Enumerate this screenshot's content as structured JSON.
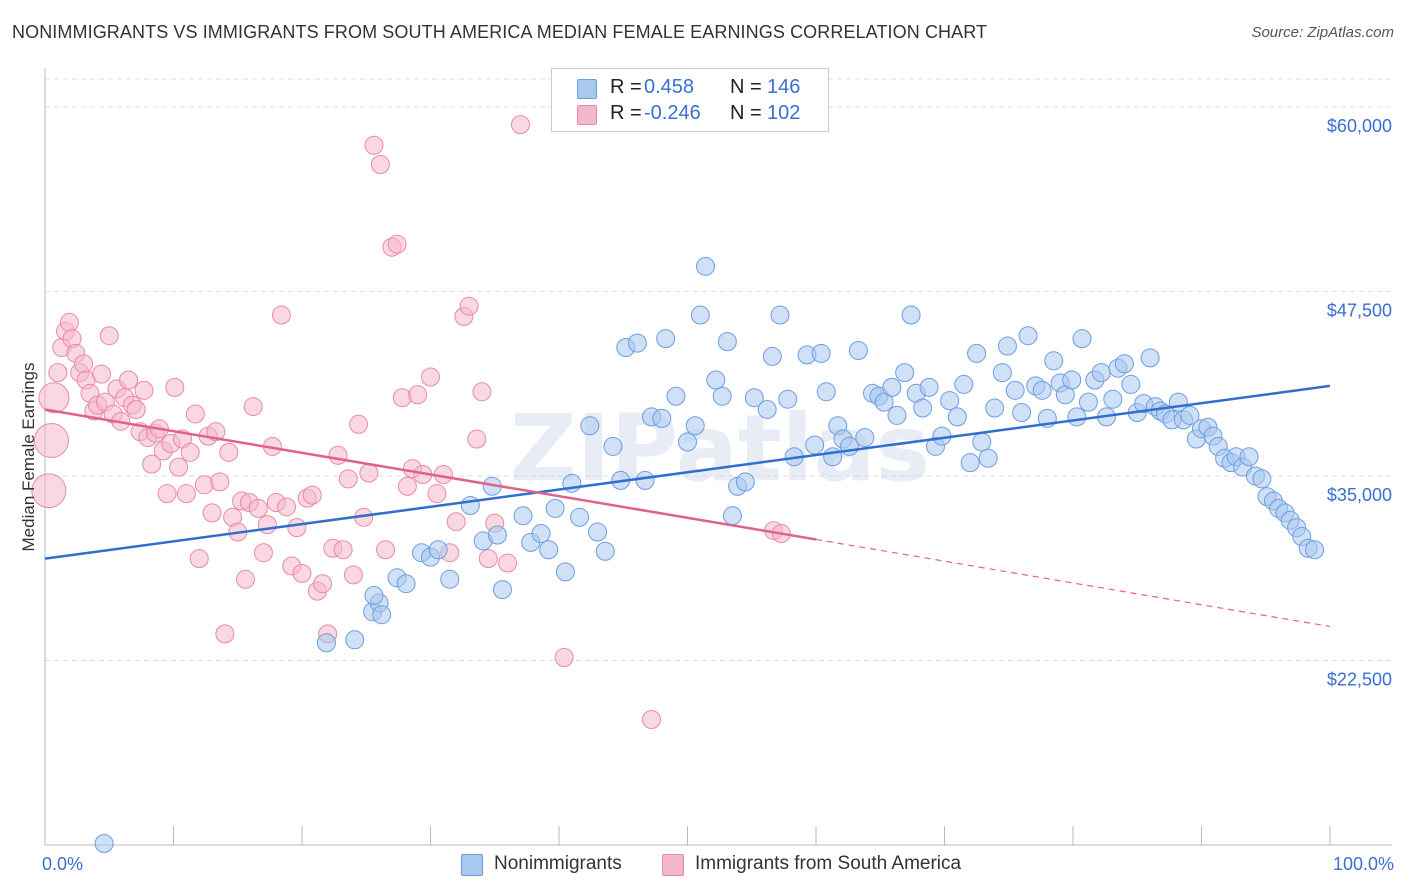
{
  "title": "NONIMMIGRANTS VS IMMIGRANTS FROM SOUTH AMERICA MEDIAN FEMALE EARNINGS CORRELATION CHART",
  "source": "Source: ZipAtlas.com",
  "watermark": "ZIPatlas",
  "legend": {
    "rows": [
      {
        "r_label": "R =",
        "r_value": "0.458",
        "n_label": "N =",
        "n_value": "146"
      },
      {
        "r_label": "R =",
        "r_value": "-0.246",
        "n_label": "N =",
        "n_value": "102"
      }
    ]
  },
  "bottom_legend": [
    "Nonimmigrants",
    "Immigrants from South America"
  ],
  "colors": {
    "blue_fill": "#a9c8f0",
    "blue_stroke": "#6b9ee0",
    "blue_line": "#2f6fcf",
    "pink_fill": "#f5b8cb",
    "pink_stroke": "#e88aa6",
    "pink_line": "#e0628a",
    "tick_label": "#3a6fd1",
    "grid": "#dddddd"
  },
  "chart_data": {
    "type": "scatter",
    "ylabel": "Median Female Earnings",
    "xlabel": "",
    "xlim": [
      0,
      100
    ],
    "ylim": [
      10000,
      62500
    ],
    "x_tick_labels": [
      {
        "value": 0,
        "label": "0.0%"
      },
      {
        "value": 100,
        "label": "100.0%"
      }
    ],
    "y_ticks": [
      {
        "value": 22500,
        "label": "$22,500"
      },
      {
        "value": 35000,
        "label": "$35,000"
      },
      {
        "value": 47500,
        "label": "$47,500"
      },
      {
        "value": 60000,
        "label": "$60,000"
      }
    ],
    "grid": true,
    "series": [
      {
        "name": "Nonimmigrants",
        "color": "#a9c8f0",
        "trend": {
          "x": [
            0,
            100
          ],
          "y": [
            29400,
            41100
          ]
        },
        "points": [
          [
            4.6,
            10100
          ],
          [
            21.9,
            23700
          ],
          [
            24.1,
            23900
          ],
          [
            25.5,
            25800
          ],
          [
            26.0,
            26400
          ],
          [
            26.2,
            25600
          ],
          [
            25.6,
            26900
          ],
          [
            27.4,
            28100
          ],
          [
            28.1,
            27700
          ],
          [
            29.3,
            29800
          ],
          [
            30.0,
            29500
          ],
          [
            30.6,
            30000
          ],
          [
            31.5,
            28000
          ],
          [
            33.1,
            33000
          ],
          [
            34.1,
            30600
          ],
          [
            34.8,
            34300
          ],
          [
            35.2,
            31000
          ],
          [
            35.6,
            27300
          ],
          [
            37.2,
            32300
          ],
          [
            37.8,
            30500
          ],
          [
            38.6,
            31100
          ],
          [
            39.2,
            30000
          ],
          [
            39.7,
            32800
          ],
          [
            40.5,
            28500
          ],
          [
            41.0,
            34500
          ],
          [
            41.6,
            32200
          ],
          [
            42.4,
            38400
          ],
          [
            43.0,
            31200
          ],
          [
            43.6,
            29900
          ],
          [
            44.2,
            37000
          ],
          [
            44.8,
            34700
          ],
          [
            45.2,
            43700
          ],
          [
            46.1,
            44000
          ],
          [
            46.7,
            34700
          ],
          [
            47.2,
            39000
          ],
          [
            48.0,
            38900
          ],
          [
            48.3,
            44300
          ],
          [
            49.1,
            40400
          ],
          [
            50.0,
            37300
          ],
          [
            50.6,
            38400
          ],
          [
            51.0,
            45900
          ],
          [
            51.4,
            49200
          ],
          [
            52.2,
            41500
          ],
          [
            52.7,
            40400
          ],
          [
            53.1,
            44100
          ],
          [
            53.5,
            32300
          ],
          [
            53.9,
            34300
          ],
          [
            54.5,
            34600
          ],
          [
            55.2,
            40300
          ],
          [
            56.2,
            39500
          ],
          [
            56.6,
            43100
          ],
          [
            57.2,
            45900
          ],
          [
            57.8,
            40200
          ],
          [
            58.3,
            36300
          ],
          [
            59.3,
            43200
          ],
          [
            59.9,
            37100
          ],
          [
            60.4,
            43300
          ],
          [
            60.8,
            40700
          ],
          [
            61.3,
            36300
          ],
          [
            61.7,
            38400
          ],
          [
            62.1,
            37500
          ],
          [
            62.6,
            37000
          ],
          [
            63.3,
            43500
          ],
          [
            63.8,
            37600
          ],
          [
            64.4,
            40600
          ],
          [
            64.9,
            40400
          ],
          [
            65.3,
            40000
          ],
          [
            65.9,
            41000
          ],
          [
            66.3,
            39100
          ],
          [
            66.9,
            42000
          ],
          [
            67.4,
            45900
          ],
          [
            67.8,
            40600
          ],
          [
            68.3,
            39600
          ],
          [
            68.8,
            41000
          ],
          [
            69.3,
            37000
          ],
          [
            69.8,
            37700
          ],
          [
            70.4,
            40100
          ],
          [
            71.0,
            39000
          ],
          [
            71.5,
            41200
          ],
          [
            72.0,
            35900
          ],
          [
            72.5,
            43300
          ],
          [
            72.9,
            37300
          ],
          [
            73.4,
            36200
          ],
          [
            73.9,
            39600
          ],
          [
            74.5,
            42000
          ],
          [
            74.9,
            43800
          ],
          [
            75.5,
            40800
          ],
          [
            76.0,
            39300
          ],
          [
            76.5,
            44500
          ],
          [
            77.1,
            41100
          ],
          [
            77.6,
            40800
          ],
          [
            78.0,
            38900
          ],
          [
            78.5,
            42800
          ],
          [
            79.0,
            41300
          ],
          [
            79.4,
            40500
          ],
          [
            79.9,
            41500
          ],
          [
            80.3,
            39000
          ],
          [
            80.7,
            44300
          ],
          [
            81.2,
            40000
          ],
          [
            81.7,
            41500
          ],
          [
            82.2,
            42000
          ],
          [
            82.6,
            39000
          ],
          [
            83.1,
            40200
          ],
          [
            83.5,
            42300
          ],
          [
            84.0,
            42600
          ],
          [
            84.5,
            41200
          ],
          [
            85.0,
            39300
          ],
          [
            85.5,
            39900
          ],
          [
            86.0,
            43000
          ],
          [
            86.4,
            39700
          ],
          [
            86.8,
            39400
          ],
          [
            87.2,
            39200
          ],
          [
            87.7,
            38800
          ],
          [
            88.2,
            40000
          ],
          [
            88.6,
            38800
          ],
          [
            89.1,
            39100
          ],
          [
            89.6,
            37500
          ],
          [
            90.0,
            38200
          ],
          [
            90.5,
            38300
          ],
          [
            90.9,
            37700
          ],
          [
            91.3,
            37000
          ],
          [
            91.8,
            36200
          ],
          [
            92.3,
            35900
          ],
          [
            92.7,
            36300
          ],
          [
            93.2,
            35600
          ],
          [
            93.7,
            36300
          ],
          [
            94.2,
            35000
          ],
          [
            94.7,
            34800
          ],
          [
            95.1,
            33600
          ],
          [
            95.6,
            33300
          ],
          [
            96.0,
            32800
          ],
          [
            96.5,
            32500
          ],
          [
            96.9,
            32000
          ],
          [
            97.4,
            31500
          ],
          [
            97.8,
            30900
          ],
          [
            98.3,
            30100
          ],
          [
            98.8,
            30000
          ]
        ]
      },
      {
        "name": "Immigrants from South America",
        "color": "#f5b8cb",
        "trend": {
          "x": [
            0,
            60
          ],
          "y": [
            39500,
            30700
          ]
        },
        "trend_dashed": {
          "x": [
            60,
            100
          ],
          "y": [
            30700,
            24800
          ]
        },
        "points": [
          [
            0.3,
            34000
          ],
          [
            0.5,
            37400
          ],
          [
            0.7,
            40300
          ],
          [
            1.0,
            42000
          ],
          [
            1.3,
            43700
          ],
          [
            1.6,
            44800
          ],
          [
            1.9,
            45400
          ],
          [
            2.1,
            44300
          ],
          [
            2.4,
            43300
          ],
          [
            2.7,
            42000
          ],
          [
            3.0,
            42600
          ],
          [
            3.2,
            41500
          ],
          [
            3.5,
            40600
          ],
          [
            3.8,
            39400
          ],
          [
            4.1,
            39800
          ],
          [
            4.4,
            41900
          ],
          [
            4.7,
            40000
          ],
          [
            5.0,
            44500
          ],
          [
            5.3,
            39200
          ],
          [
            5.6,
            40900
          ],
          [
            5.9,
            38700
          ],
          [
            6.2,
            40300
          ],
          [
            6.5,
            41500
          ],
          [
            6.8,
            39800
          ],
          [
            7.1,
            39500
          ],
          [
            7.4,
            38000
          ],
          [
            7.7,
            40800
          ],
          [
            8.0,
            37600
          ],
          [
            8.3,
            35800
          ],
          [
            8.6,
            37900
          ],
          [
            8.9,
            38200
          ],
          [
            9.2,
            36700
          ],
          [
            9.5,
            33800
          ],
          [
            9.8,
            37200
          ],
          [
            10.1,
            41000
          ],
          [
            10.4,
            35600
          ],
          [
            10.7,
            37500
          ],
          [
            11.0,
            33800
          ],
          [
            11.3,
            36600
          ],
          [
            11.7,
            39200
          ],
          [
            12.0,
            29400
          ],
          [
            12.4,
            34400
          ],
          [
            12.7,
            37700
          ],
          [
            13.0,
            32500
          ],
          [
            13.3,
            38000
          ],
          [
            13.6,
            34600
          ],
          [
            14.0,
            24300
          ],
          [
            14.3,
            36600
          ],
          [
            14.6,
            32200
          ],
          [
            15.0,
            31200
          ],
          [
            15.3,
            33300
          ],
          [
            15.6,
            28000
          ],
          [
            15.9,
            33200
          ],
          [
            16.2,
            39700
          ],
          [
            16.6,
            32800
          ],
          [
            17.0,
            29800
          ],
          [
            17.3,
            31700
          ],
          [
            17.7,
            37000
          ],
          [
            18.0,
            33200
          ],
          [
            18.4,
            45900
          ],
          [
            18.8,
            32900
          ],
          [
            19.2,
            28900
          ],
          [
            19.6,
            31500
          ],
          [
            20.0,
            28400
          ],
          [
            20.4,
            33500
          ],
          [
            20.8,
            33700
          ],
          [
            21.2,
            27200
          ],
          [
            21.6,
            27700
          ],
          [
            22.0,
            24300
          ],
          [
            22.4,
            30100
          ],
          [
            22.8,
            36400
          ],
          [
            23.2,
            30000
          ],
          [
            23.6,
            34800
          ],
          [
            24.0,
            28300
          ],
          [
            24.4,
            38500
          ],
          [
            24.8,
            32200
          ],
          [
            25.2,
            35200
          ],
          [
            25.6,
            57400
          ],
          [
            26.1,
            56100
          ],
          [
            26.5,
            30000
          ],
          [
            27.0,
            50500
          ],
          [
            27.4,
            50700
          ],
          [
            27.8,
            40300
          ],
          [
            28.2,
            34300
          ],
          [
            28.6,
            35500
          ],
          [
            29.0,
            40500
          ],
          [
            29.4,
            35100
          ],
          [
            30.0,
            41700
          ],
          [
            30.5,
            33800
          ],
          [
            31.0,
            35100
          ],
          [
            31.5,
            29800
          ],
          [
            32.0,
            31900
          ],
          [
            32.6,
            45800
          ],
          [
            33.0,
            46500
          ],
          [
            33.6,
            37500
          ],
          [
            34.0,
            40700
          ],
          [
            34.5,
            29400
          ],
          [
            35.0,
            31800
          ],
          [
            36.0,
            29100
          ],
          [
            37.0,
            58800
          ],
          [
            40.4,
            22700
          ],
          [
            47.2,
            18500
          ],
          [
            56.7,
            31300
          ],
          [
            57.3,
            31100
          ]
        ]
      }
    ]
  }
}
